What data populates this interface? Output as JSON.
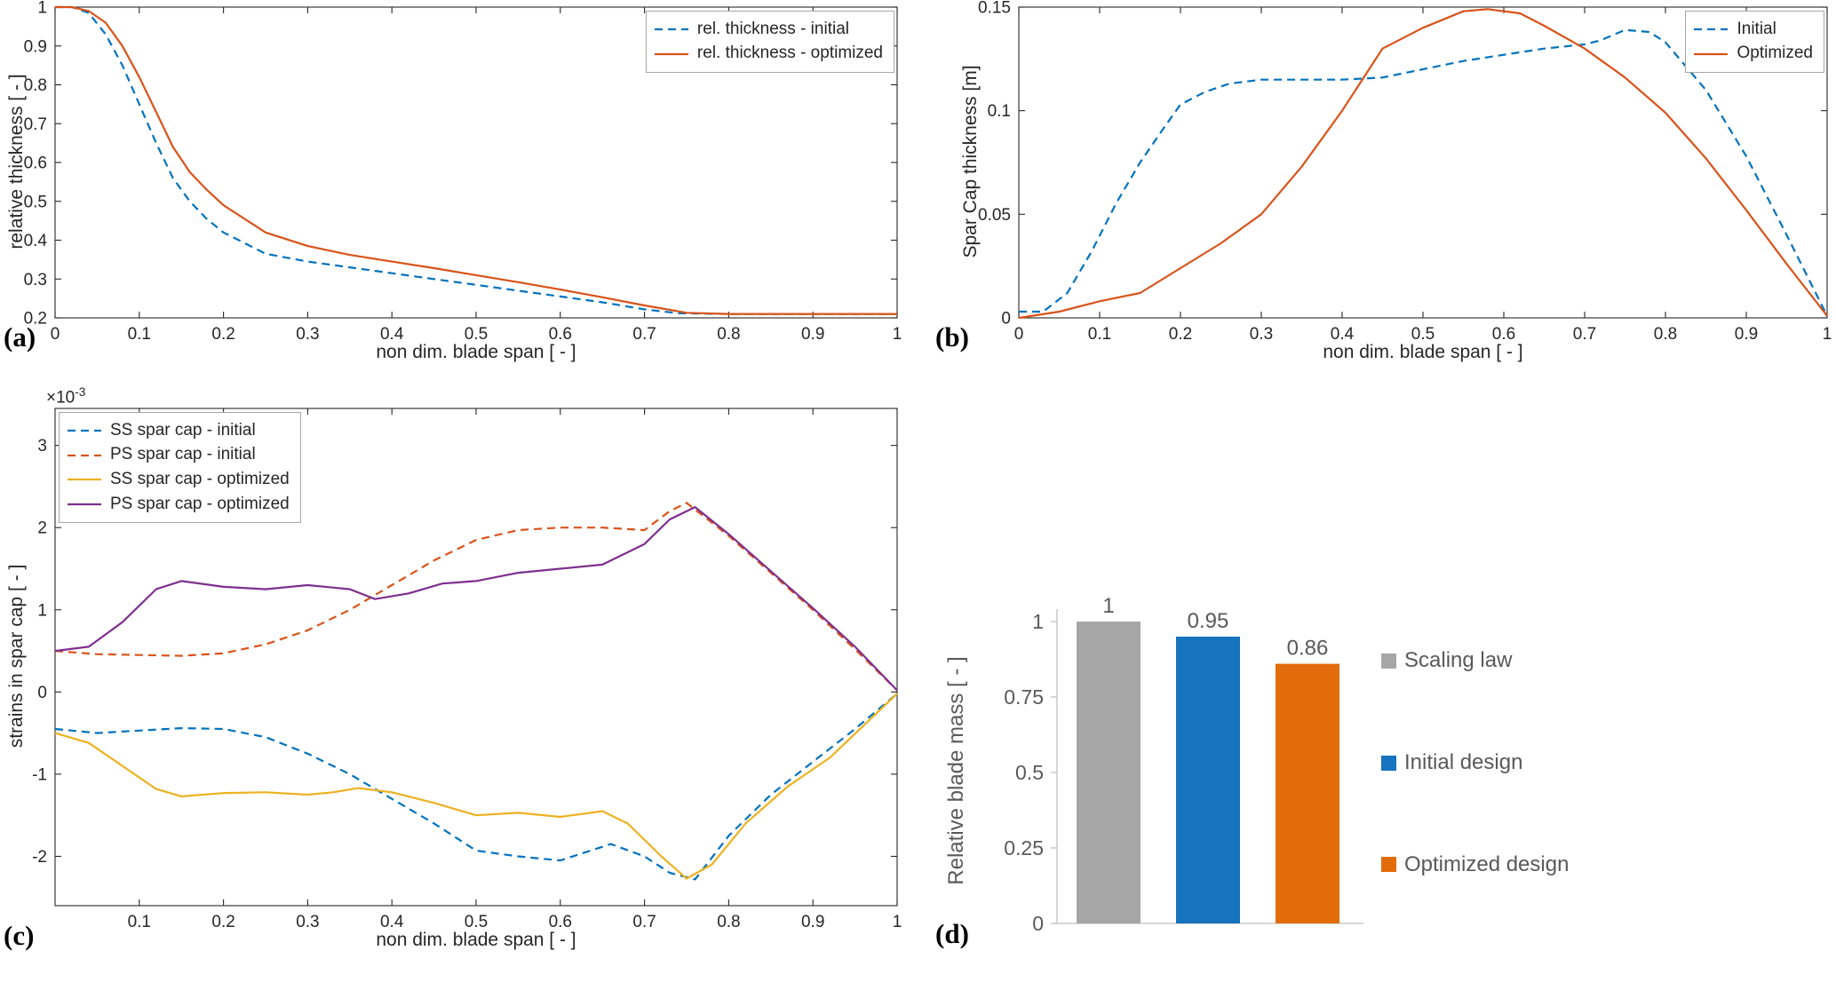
{
  "panels": {
    "a": {
      "tag": "(a)"
    },
    "b": {
      "tag": "(b)"
    },
    "c": {
      "tag": "(c)"
    },
    "d": {
      "tag": "(d)"
    }
  },
  "chart_data": [
    {
      "id": "a",
      "type": "line",
      "title": "",
      "xlabel": "non dim. blade span [ - ]",
      "ylabel": "relative thickness [ - ]",
      "xlim": [
        0,
        1
      ],
      "ylim": [
        0.2,
        1
      ],
      "xticks": [
        0,
        0.1,
        0.2,
        0.3,
        0.4,
        0.5,
        0.6,
        0.7,
        0.8,
        0.9,
        1
      ],
      "yticks": [
        0.2,
        0.3,
        0.4,
        0.5,
        0.6,
        0.7,
        0.8,
        0.9,
        1
      ],
      "grid": false,
      "legend_position": "top-right",
      "series": [
        {
          "name": "rel. thickness - initial",
          "color": "#0072BD",
          "dash": true,
          "x": [
            0,
            0.02,
            0.04,
            0.06,
            0.08,
            0.1,
            0.12,
            0.14,
            0.16,
            0.18,
            0.2,
            0.25,
            0.3,
            0.35,
            0.4,
            0.45,
            0.5,
            0.55,
            0.6,
            0.65,
            0.7,
            0.74,
            0.8,
            0.9,
            1.0
          ],
          "y": [
            1.0,
            1.0,
            0.985,
            0.93,
            0.85,
            0.75,
            0.65,
            0.56,
            0.5,
            0.455,
            0.42,
            0.365,
            0.345,
            0.33,
            0.315,
            0.3,
            0.285,
            0.27,
            0.255,
            0.24,
            0.222,
            0.212,
            0.21,
            0.21,
            0.21
          ]
        },
        {
          "name": "rel. thickness - optimized",
          "color": "#D95319",
          "dash": false,
          "x": [
            0,
            0.02,
            0.04,
            0.06,
            0.08,
            0.1,
            0.12,
            0.14,
            0.16,
            0.18,
            0.2,
            0.25,
            0.3,
            0.35,
            0.4,
            0.45,
            0.5,
            0.55,
            0.6,
            0.65,
            0.7,
            0.75,
            0.8,
            0.9,
            1.0
          ],
          "y": [
            1.0,
            1.0,
            0.99,
            0.96,
            0.9,
            0.82,
            0.73,
            0.64,
            0.575,
            0.53,
            0.49,
            0.42,
            0.385,
            0.362,
            0.345,
            0.328,
            0.31,
            0.292,
            0.273,
            0.253,
            0.232,
            0.213,
            0.21,
            0.21,
            0.21
          ]
        }
      ]
    },
    {
      "id": "b",
      "type": "line",
      "title": "",
      "xlabel": "non dim. blade span [ - ]",
      "ylabel": "Spar Cap thickness [m]",
      "xlim": [
        0,
        1
      ],
      "ylim": [
        0,
        0.15
      ],
      "xticks": [
        0,
        0.1,
        0.2,
        0.3,
        0.4,
        0.5,
        0.6,
        0.7,
        0.8,
        0.9,
        1
      ],
      "yticks": [
        0,
        0.05,
        0.1,
        0.15
      ],
      "grid": false,
      "legend_position": "top-right",
      "series": [
        {
          "name": "Initial",
          "color": "#0072BD",
          "dash": true,
          "x": [
            0,
            0.03,
            0.06,
            0.09,
            0.12,
            0.15,
            0.18,
            0.2,
            0.23,
            0.26,
            0.3,
            0.35,
            0.4,
            0.45,
            0.5,
            0.55,
            0.6,
            0.65,
            0.7,
            0.72,
            0.75,
            0.78,
            0.8,
            0.85,
            0.9,
            0.95,
            1.0
          ],
          "y": [
            0.003,
            0.003,
            0.012,
            0.032,
            0.055,
            0.075,
            0.092,
            0.103,
            0.109,
            0.113,
            0.115,
            0.115,
            0.115,
            0.116,
            0.12,
            0.124,
            0.127,
            0.13,
            0.132,
            0.134,
            0.139,
            0.138,
            0.133,
            0.11,
            0.078,
            0.04,
            0.001
          ]
        },
        {
          "name": "Optimized",
          "color": "#D95319",
          "dash": false,
          "x": [
            0,
            0.05,
            0.1,
            0.15,
            0.2,
            0.25,
            0.3,
            0.35,
            0.4,
            0.45,
            0.5,
            0.55,
            0.58,
            0.62,
            0.65,
            0.7,
            0.75,
            0.8,
            0.85,
            0.9,
            0.95,
            1.0
          ],
          "y": [
            0.0,
            0.003,
            0.008,
            0.012,
            0.024,
            0.036,
            0.05,
            0.073,
            0.1,
            0.13,
            0.14,
            0.148,
            0.149,
            0.147,
            0.141,
            0.13,
            0.116,
            0.099,
            0.077,
            0.052,
            0.026,
            0.001
          ]
        }
      ]
    },
    {
      "id": "c",
      "type": "line",
      "title": "",
      "xlabel": "non dim. blade span [ - ]",
      "ylabel": "strains in spar cap [ - ]",
      "multiplier_base": "×10",
      "multiplier_exp": "-3",
      "xlim": [
        0,
        1
      ],
      "ylim": [
        -2.6,
        3.45
      ],
      "xticks": [
        0.1,
        0.2,
        0.3,
        0.4,
        0.5,
        0.6,
        0.7,
        0.8,
        0.9,
        1
      ],
      "yticks": [
        -2,
        -1,
        0,
        1,
        2,
        3
      ],
      "grid": false,
      "legend_position": "top-left",
      "series": [
        {
          "name": "SS spar cap - initial",
          "color": "#0072BD",
          "dash": true,
          "x": [
            0,
            0.05,
            0.1,
            0.15,
            0.2,
            0.25,
            0.3,
            0.35,
            0.4,
            0.45,
            0.5,
            0.55,
            0.6,
            0.63,
            0.66,
            0.7,
            0.73,
            0.76,
            0.8,
            0.85,
            0.9,
            0.95,
            1.0
          ],
          "y": [
            -0.45,
            -0.5,
            -0.47,
            -0.44,
            -0.45,
            -0.55,
            -0.75,
            -1.0,
            -1.3,
            -1.6,
            -1.93,
            -2.0,
            -2.05,
            -1.95,
            -1.85,
            -2.0,
            -2.2,
            -2.28,
            -1.75,
            -1.25,
            -0.85,
            -0.45,
            -0.02
          ]
        },
        {
          "name": "PS spar cap - initial",
          "color": "#D95319",
          "dash": true,
          "x": [
            0,
            0.05,
            0.1,
            0.15,
            0.2,
            0.25,
            0.3,
            0.35,
            0.4,
            0.45,
            0.5,
            0.55,
            0.6,
            0.65,
            0.7,
            0.73,
            0.75,
            0.8,
            0.85,
            0.9,
            0.95,
            1.0
          ],
          "y": [
            0.5,
            0.46,
            0.45,
            0.44,
            0.47,
            0.58,
            0.75,
            1.0,
            1.3,
            1.6,
            1.85,
            1.97,
            2.0,
            2.0,
            1.97,
            2.2,
            2.3,
            1.9,
            1.45,
            1.0,
            0.52,
            0.02
          ]
        },
        {
          "name": "SS spar cap - optimized",
          "color": "#EDB120",
          "dash": false,
          "x": [
            0,
            0.04,
            0.08,
            0.12,
            0.15,
            0.2,
            0.25,
            0.3,
            0.33,
            0.36,
            0.4,
            0.45,
            0.5,
            0.55,
            0.6,
            0.65,
            0.68,
            0.72,
            0.75,
            0.78,
            0.82,
            0.87,
            0.92,
            1.0
          ],
          "y": [
            -0.5,
            -0.62,
            -0.9,
            -1.18,
            -1.27,
            -1.23,
            -1.22,
            -1.25,
            -1.22,
            -1.17,
            -1.22,
            -1.35,
            -1.5,
            -1.47,
            -1.52,
            -1.45,
            -1.6,
            -2.0,
            -2.27,
            -2.1,
            -1.6,
            -1.15,
            -0.8,
            -0.02
          ]
        },
        {
          "name": "PS spar cap - optimized",
          "color": "#7E2F8E",
          "dash": false,
          "x": [
            0,
            0.04,
            0.08,
            0.12,
            0.15,
            0.2,
            0.25,
            0.3,
            0.35,
            0.38,
            0.42,
            0.46,
            0.5,
            0.55,
            0.6,
            0.65,
            0.7,
            0.73,
            0.76,
            0.8,
            0.85,
            0.9,
            0.95,
            1.0
          ],
          "y": [
            0.5,
            0.55,
            0.85,
            1.25,
            1.35,
            1.28,
            1.25,
            1.3,
            1.25,
            1.13,
            1.2,
            1.32,
            1.35,
            1.45,
            1.5,
            1.55,
            1.8,
            2.1,
            2.25,
            1.92,
            1.47,
            1.02,
            0.55,
            0.02
          ]
        }
      ]
    },
    {
      "id": "d",
      "type": "bar",
      "title": "",
      "xlabel": "",
      "ylabel": "Relative blade mass [ - ]",
      "categories": [
        "Scaling law",
        "Initial design",
        "Optimized design"
      ],
      "values": [
        1,
        0.95,
        0.86
      ],
      "value_labels": [
        "1",
        "0.95",
        "0.86"
      ],
      "colors": [
        "#A6A6A6",
        "#1673BE",
        "#E26B0A"
      ],
      "ylim": [
        0,
        1
      ],
      "yticks": [
        0,
        0.25,
        0.5,
        0.75,
        1
      ],
      "grid": false,
      "legend_position": "right"
    }
  ]
}
